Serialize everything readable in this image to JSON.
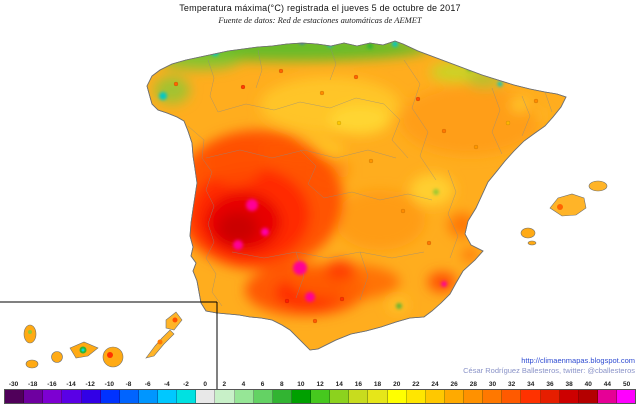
{
  "header": {
    "title": "Temperatura máxima(°C) registrada el jueves 5 de octubre de 2017",
    "subtitle": "Fuente de datos: Red de estaciones automáticas de AEMET"
  },
  "credits": {
    "url": "http://climaenmapas.blogspot.com",
    "author": "César Rodríguez Ballesteros, twitter: @cballesteros"
  },
  "colorbar": {
    "labels": [
      "-30",
      "-18",
      "-16",
      "-14",
      "-12",
      "-10",
      "-8",
      "-6",
      "-4",
      "-2",
      "0",
      "2",
      "4",
      "6",
      "8",
      "10",
      "12",
      "14",
      "16",
      "18",
      "20",
      "22",
      "24",
      "26",
      "28",
      "30",
      "32",
      "34",
      "36",
      "38",
      "40",
      "44",
      "50"
    ],
    "colors": [
      "#50005a",
      "#6e00a0",
      "#7d00d2",
      "#5a00e6",
      "#3200e6",
      "#0032ff",
      "#0064ff",
      "#0096ff",
      "#00c8ff",
      "#00e1e1",
      "#e8e8e8",
      "#c8f0c8",
      "#96e696",
      "#64d264",
      "#32b432",
      "#00a000",
      "#46c81e",
      "#8cd21e",
      "#c8dc1e",
      "#e6e619",
      "#ffff00",
      "#ffe600",
      "#ffc800",
      "#ffaa00",
      "#ff9100",
      "#ff7800",
      "#ff5a00",
      "#ff3200",
      "#e61e00",
      "#cd0000",
      "#b40000",
      "#e60096",
      "#ff00ff"
    ]
  }
}
